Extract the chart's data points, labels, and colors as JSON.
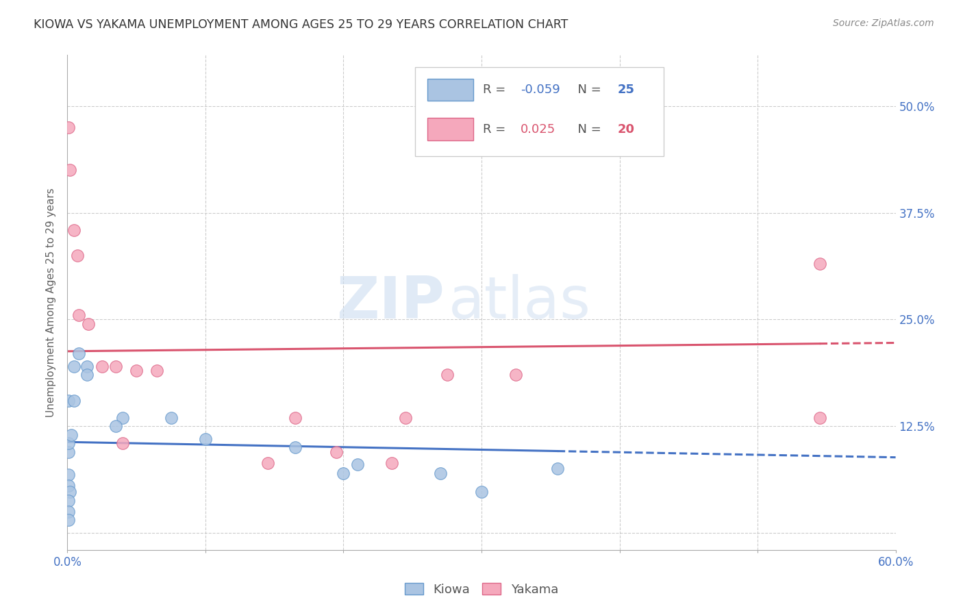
{
  "title": "KIOWA VS YAKAMA UNEMPLOYMENT AMONG AGES 25 TO 29 YEARS CORRELATION CHART",
  "source": "Source: ZipAtlas.com",
  "xlabel": "",
  "ylabel": "Unemployment Among Ages 25 to 29 years",
  "xlim": [
    0.0,
    0.6
  ],
  "ylim": [
    -0.02,
    0.56
  ],
  "xticks": [
    0.0,
    0.1,
    0.2,
    0.3,
    0.4,
    0.5,
    0.6
  ],
  "yticks": [
    0.0,
    0.125,
    0.25,
    0.375,
    0.5
  ],
  "kiowa_color": "#aac4e2",
  "yakama_color": "#f5a8bc",
  "kiowa_edge_color": "#6699cc",
  "yakama_edge_color": "#dd6688",
  "trend_color_blue": "#4472c4",
  "trend_color_pink": "#d9546e",
  "R_kiowa": -0.059,
  "N_kiowa": 25,
  "R_yakama": 0.025,
  "N_yakama": 20,
  "kiowa_x": [
    0.001,
    0.005,
    0.005,
    0.008,
    0.001,
    0.001,
    0.003,
    0.001,
    0.001,
    0.002,
    0.001,
    0.001,
    0.001,
    0.014,
    0.014,
    0.04,
    0.035,
    0.075,
    0.1,
    0.165,
    0.2,
    0.21,
    0.27,
    0.3,
    0.355
  ],
  "kiowa_y": [
    0.155,
    0.195,
    0.155,
    0.21,
    0.095,
    0.105,
    0.115,
    0.068,
    0.055,
    0.048,
    0.038,
    0.025,
    0.015,
    0.195,
    0.185,
    0.135,
    0.125,
    0.135,
    0.11,
    0.1,
    0.07,
    0.08,
    0.07,
    0.048,
    0.075
  ],
  "yakama_x": [
    0.001,
    0.002,
    0.005,
    0.007,
    0.008,
    0.015,
    0.025,
    0.035,
    0.04,
    0.05,
    0.065,
    0.145,
    0.165,
    0.195,
    0.235,
    0.245,
    0.275,
    0.325,
    0.545,
    0.545
  ],
  "yakama_y": [
    0.475,
    0.425,
    0.355,
    0.325,
    0.255,
    0.245,
    0.195,
    0.195,
    0.105,
    0.19,
    0.19,
    0.082,
    0.135,
    0.095,
    0.082,
    0.135,
    0.185,
    0.185,
    0.315,
    0.135
  ],
  "watermark_zip": "ZIP",
  "watermark_atlas": "atlas",
  "background_color": "#ffffff",
  "grid_color": "#cccccc",
  "axis_label_color": "#4472c4",
  "title_color": "#333333"
}
